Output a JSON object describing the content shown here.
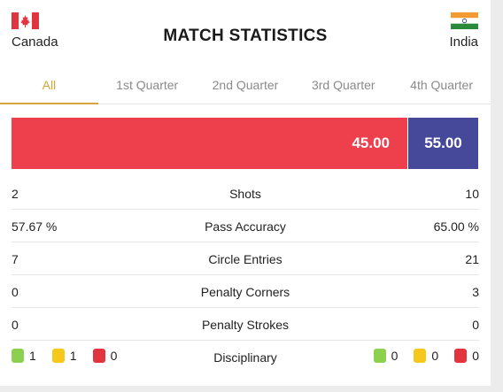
{
  "header": {
    "title": "MATCH STATISTICS",
    "home_team": "Canada",
    "away_team": "India"
  },
  "tabs": [
    {
      "label": "All",
      "active": true
    },
    {
      "label": "1st Quarter",
      "active": false
    },
    {
      "label": "2nd Quarter",
      "active": false
    },
    {
      "label": "3rd Quarter",
      "active": false
    },
    {
      "label": "4th Quarter",
      "active": false
    }
  ],
  "possession": {
    "home_value": "45.00",
    "away_value": "55.00",
    "home_fraction": 0.45,
    "home_color": "#ee3f4c",
    "away_color": "#464899"
  },
  "stats": [
    {
      "label": "Shots",
      "home": "2",
      "away": "10"
    },
    {
      "label": "Pass Accuracy",
      "home": "57.67 %",
      "away": "65.00 %"
    },
    {
      "label": "Circle Entries",
      "home": "7",
      "away": "21"
    },
    {
      "label": "Penalty Corners",
      "home": "0",
      "away": "3"
    },
    {
      "label": "Penalty Strokes",
      "home": "0",
      "away": "0"
    }
  ],
  "disciplinary": {
    "label": "Disciplinary",
    "home": {
      "green": "1",
      "yellow": "1",
      "red": "0"
    },
    "away": {
      "green": "0",
      "yellow": "0",
      "red": "0"
    },
    "colors": {
      "green": "#8bd14f",
      "yellow": "#f7c81c",
      "red": "#e2343f"
    }
  }
}
